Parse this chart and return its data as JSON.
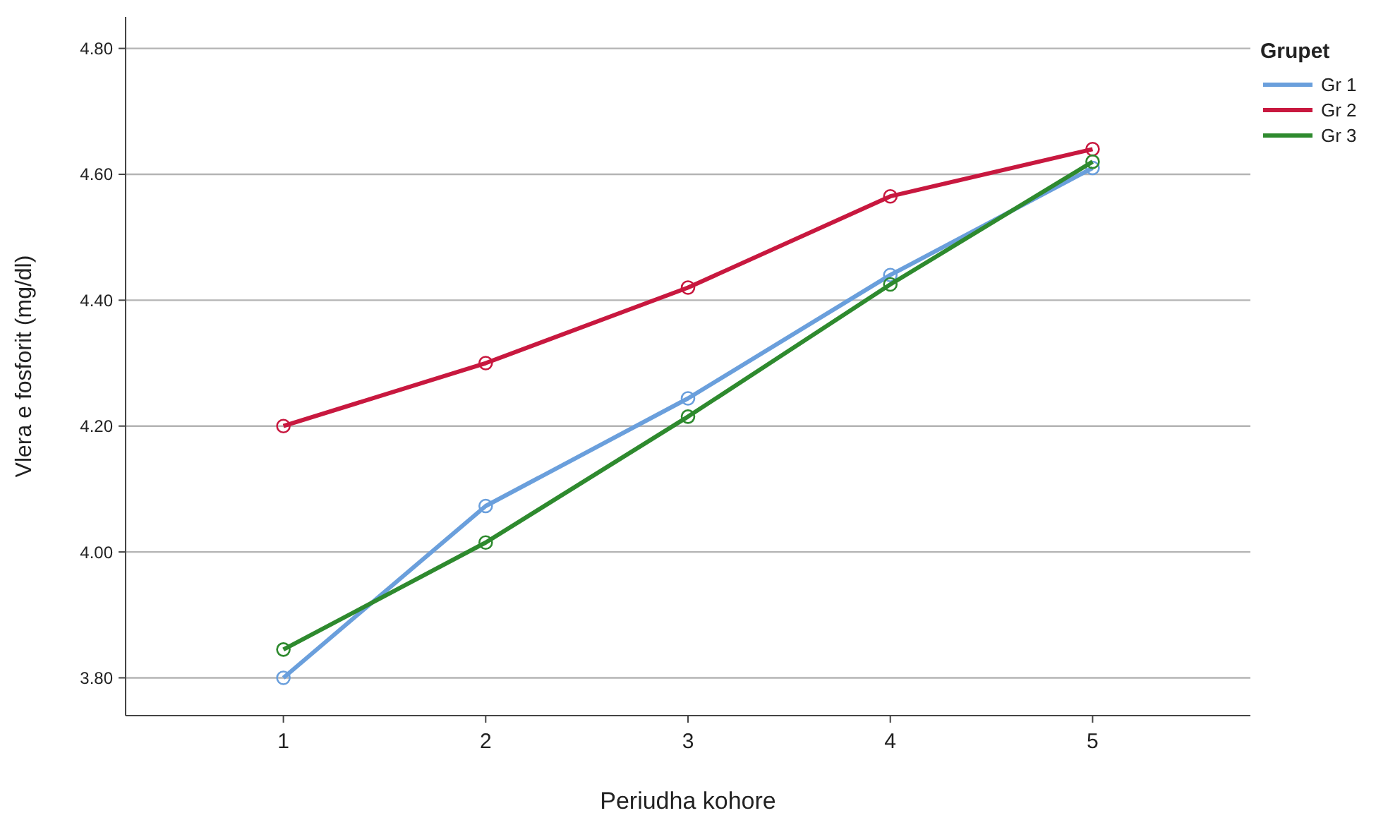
{
  "chart_data": {
    "type": "line",
    "xlabel": "Periudha kohore",
    "ylabel": "Vlera e fosforit (mg/dl)",
    "legend_title": "Grupet",
    "categories": [
      "1",
      "2",
      "3",
      "4",
      "5"
    ],
    "series": [
      {
        "name": "Gr 1",
        "color": "#6a9fdc",
        "values": [
          3.8,
          4.073,
          4.244,
          4.44,
          4.61
        ]
      },
      {
        "name": "Gr 2",
        "color": "#c8183f",
        "values": [
          4.2,
          4.3,
          4.42,
          4.565,
          4.64
        ]
      },
      {
        "name": "Gr 3",
        "color": "#2e8a2e",
        "values": [
          3.845,
          4.015,
          4.215,
          4.425,
          4.62
        ]
      }
    ],
    "ylim": [
      3.74,
      4.85
    ],
    "yticks": [
      {
        "value": 3.8,
        "label": "3.80"
      },
      {
        "value": 4.0,
        "label": "4.00"
      },
      {
        "value": 4.2,
        "label": "4.20"
      },
      {
        "value": 4.4,
        "label": "4.40"
      },
      {
        "value": 4.6,
        "label": "4.60"
      },
      {
        "value": 4.8,
        "label": "4.80"
      }
    ],
    "grid": "y",
    "legend": "top right",
    "marker": "circle",
    "line_style": "solid"
  }
}
